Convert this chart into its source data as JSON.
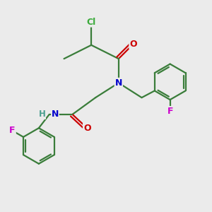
{
  "background_color": "#ebebeb",
  "atom_colors": {
    "C": "#3a7d3a",
    "N": "#0000cc",
    "O": "#cc0000",
    "F": "#cc00cc",
    "Cl": "#3aaa3a",
    "H": "#4a9e8f"
  },
  "bond_color": "#3a7d3a",
  "figsize": [
    3.0,
    3.0
  ],
  "dpi": 100,
  "xlim": [
    0,
    10
  ],
  "ylim": [
    0,
    10
  ]
}
